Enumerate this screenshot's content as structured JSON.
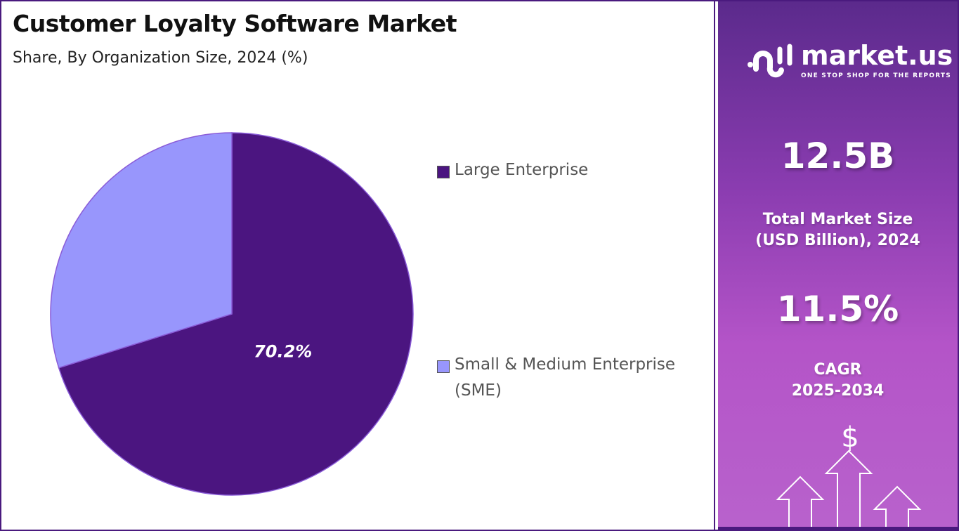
{
  "chart_data": {
    "type": "pie",
    "title": "Customer Loyalty Software Market",
    "subtitle": "Share, By Organization Size, 2024 (%)",
    "slices": [
      {
        "name": "Large Enterprise",
        "value": 70.2,
        "label": "70.2%",
        "color": "#4b1580"
      },
      {
        "name": "Small & Medium Enterprise (SME)",
        "value": 29.8,
        "label": "",
        "color": "#9896fc"
      }
    ],
    "legend": {
      "placement": "right",
      "entries": [
        "Large Enterprise",
        "Small & Medium Enterprise",
        "(SME)"
      ]
    }
  },
  "panel": {
    "logo_name": "market.us",
    "logo_tagline": "ONE STOP SHOP FOR THE REPORTS",
    "market_size": "12.5B",
    "market_size_label_1": "Total Market Size",
    "market_size_label_2": "(USD Billion), 2024",
    "cagr": "11.5%",
    "cagr_label_1": "CAGR",
    "cagr_label_2": "2025-2034",
    "icon": "dollar-arrows-up-icon"
  }
}
